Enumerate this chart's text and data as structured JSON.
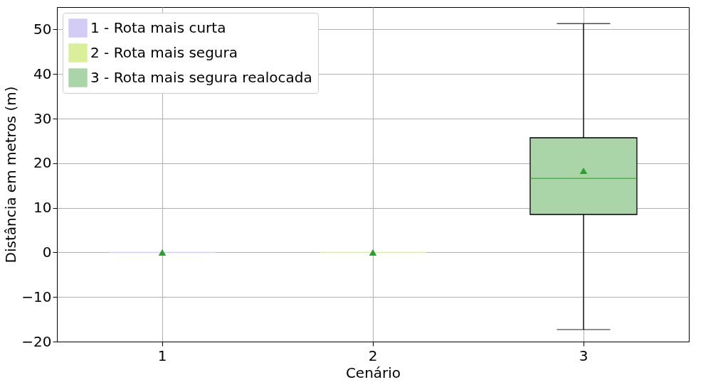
{
  "chart_data": {
    "type": "box",
    "xlabel": "Cenário",
    "ylabel": "Distância em metros (m)",
    "categories": [
      "1",
      "2",
      "3"
    ],
    "series": [
      {
        "name": "1 - Rota mais curta",
        "color": "#d3ccf5",
        "boxes": [
          {
            "low": 0,
            "q1": 0,
            "median": 0,
            "q3": 0,
            "high": 0,
            "mean": 0
          },
          null,
          null
        ]
      },
      {
        "name": "2 - Rota mais segura",
        "color": "#dbee9a",
        "boxes": [
          null,
          {
            "low": 0,
            "q1": 0,
            "median": 0,
            "q3": 0,
            "high": 0,
            "mean": 0
          },
          null
        ]
      },
      {
        "name": "3 - Rota mais segura realocada",
        "color": "#a9d5a9",
        "boxes": [
          null,
          null,
          {
            "low": -17.3,
            "q1": 8.5,
            "median": 16.6,
            "q3": 25.7,
            "high": 51.3,
            "mean": 18.3
          }
        ]
      }
    ],
    "ylim": [
      -20,
      55
    ],
    "yticks": [
      {
        "value": -20,
        "label": "−20"
      },
      {
        "value": -10,
        "label": "−10"
      },
      0,
      10,
      20,
      30,
      40,
      50
    ],
    "grid": true,
    "legend": "top left",
    "marker": "triangle"
  }
}
